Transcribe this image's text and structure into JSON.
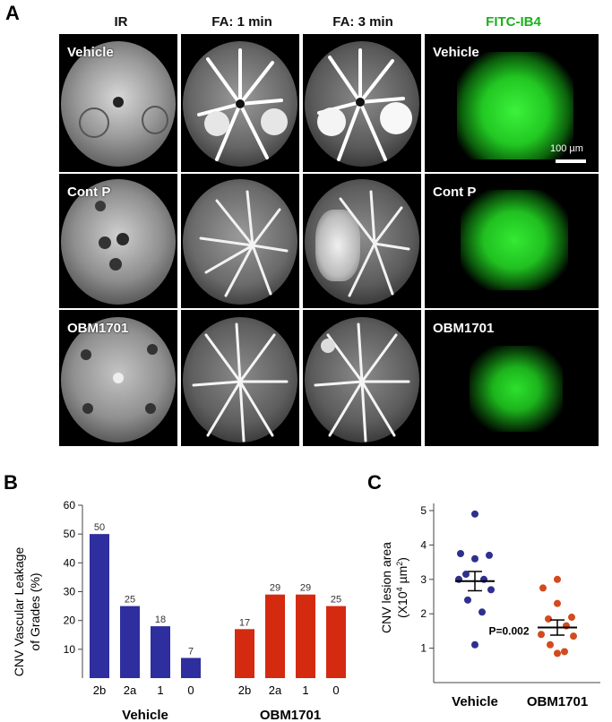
{
  "panelA": {
    "letter": "A",
    "columns": [
      "IR",
      "FA: 1 min",
      "FA: 3 min",
      "FITC-IB4"
    ],
    "fitc_color": "#19b219",
    "rows": [
      "Vehicle",
      "Cont P",
      "OBM1701"
    ],
    "scale_bar": "100 µm"
  },
  "panelB": {
    "letter": "B",
    "ylabel_line1": "CNV Vascular Leakage",
    "ylabel_line2": "of Grades (%)"
  },
  "panelC": {
    "letter": "C",
    "ylabel_line1": "CNV lesion area",
    "ylabel_pre": "(X10",
    "ylabel_sup1": "4",
    "ylabel_mid": " µm",
    "ylabel_sup2": "2",
    "ylabel_post": ")",
    "pvalue": "P=0.002"
  },
  "chart_data": [
    {
      "type": "bar",
      "groups": [
        "Vehicle",
        "OBM1701"
      ],
      "categories": [
        "2b",
        "2a",
        "1",
        "0"
      ],
      "series": [
        {
          "name": "Vehicle",
          "values": [
            50,
            25,
            18,
            7
          ],
          "color": "#2e2e9e"
        },
        {
          "name": "OBM1701",
          "values": [
            17,
            29,
            29,
            25
          ],
          "color": "#d42a10"
        }
      ],
      "ylim": [
        0,
        60
      ],
      "yticks": [
        10,
        20,
        30,
        40,
        50,
        60
      ],
      "ylabel": "CNV Vascular Leakage of Grades (%)"
    },
    {
      "type": "scatter",
      "categories": [
        "Vehicle",
        "OBM1701"
      ],
      "series": [
        {
          "name": "Vehicle",
          "values": [
            4.9,
            3.75,
            3.6,
            3.7,
            3.15,
            3.0,
            3.0,
            2.7,
            2.4,
            2.05,
            1.1
          ],
          "mean": 2.95,
          "sem": 0.28,
          "color": "#2f2f8f"
        },
        {
          "name": "OBM1701",
          "values": [
            3.0,
            2.75,
            2.3,
            1.9,
            1.85,
            1.65,
            1.4,
            1.35,
            1.1,
            0.9,
            0.85
          ],
          "mean": 1.6,
          "sem": 0.22,
          "color": "#d24a1e"
        }
      ],
      "ylim": [
        0,
        5
      ],
      "yticks": [
        1,
        2,
        3,
        4,
        5
      ],
      "ylabel": "CNV lesion area (X10^4 µm^2)"
    }
  ]
}
